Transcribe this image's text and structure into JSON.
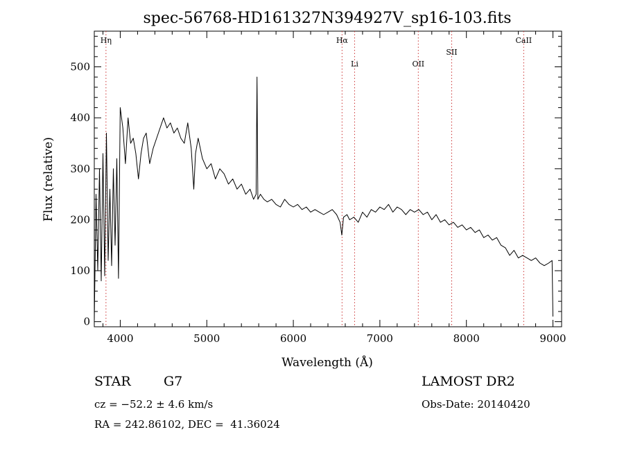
{
  "chart_data": {
    "type": "line",
    "title": "spec-56768-HD161327N394927V_sp16-103.fits",
    "xlabel": "Wavelength (Å)",
    "ylabel": "Flux (relative)",
    "xlim": [
      3700,
      9100
    ],
    "ylim": [
      -10,
      570
    ],
    "xticks": [
      4000,
      5000,
      6000,
      7000,
      8000,
      9000
    ],
    "yticks": [
      0,
      100,
      200,
      300,
      400,
      500
    ],
    "grid": false,
    "series": [
      {
        "color": "#000000",
        "x": [
          3700,
          3720,
          3740,
          3760,
          3780,
          3800,
          3820,
          3840,
          3860,
          3880,
          3900,
          3920,
          3940,
          3960,
          3980,
          4000,
          4030,
          4060,
          4090,
          4120,
          4150,
          4180,
          4210,
          4240,
          4270,
          4300,
          4340,
          4380,
          4420,
          4460,
          4500,
          4540,
          4580,
          4620,
          4660,
          4700,
          4740,
          4780,
          4820,
          4850,
          4870,
          4900,
          4950,
          5000,
          5050,
          5100,
          5150,
          5200,
          5250,
          5300,
          5350,
          5400,
          5450,
          5500,
          5540,
          5570,
          5580,
          5590,
          5620,
          5660,
          5700,
          5750,
          5800,
          5850,
          5900,
          5950,
          6000,
          6050,
          6100,
          6150,
          6200,
          6250,
          6300,
          6350,
          6400,
          6450,
          6500,
          6540,
          6560,
          6580,
          6620,
          6650,
          6700,
          6750,
          6800,
          6850,
          6900,
          6950,
          7000,
          7050,
          7100,
          7150,
          7200,
          7250,
          7300,
          7350,
          7400,
          7450,
          7500,
          7550,
          7600,
          7650,
          7700,
          7750,
          7800,
          7850,
          7900,
          7950,
          8000,
          8050,
          8100,
          8150,
          8200,
          8250,
          8300,
          8350,
          8400,
          8450,
          8500,
          8550,
          8600,
          8650,
          8700,
          8750,
          8800,
          8850,
          8900,
          8950,
          8990,
          9000
        ],
        "values": [
          0,
          250,
          100,
          300,
          80,
          330,
          90,
          370,
          120,
          260,
          110,
          300,
          150,
          320,
          85,
          420,
          380,
          310,
          400,
          350,
          360,
          330,
          280,
          330,
          360,
          370,
          310,
          340,
          360,
          380,
          400,
          380,
          390,
          370,
          380,
          360,
          350,
          390,
          340,
          260,
          330,
          360,
          320,
          300,
          310,
          280,
          300,
          290,
          270,
          280,
          260,
          270,
          250,
          260,
          240,
          250,
          480,
          240,
          250,
          240,
          235,
          240,
          230,
          225,
          240,
          230,
          225,
          230,
          220,
          225,
          215,
          220,
          215,
          210,
          215,
          220,
          210,
          195,
          170,
          205,
          210,
          200,
          205,
          195,
          215,
          205,
          220,
          215,
          225,
          220,
          230,
          215,
          225,
          220,
          210,
          220,
          215,
          220,
          210,
          215,
          200,
          210,
          195,
          200,
          190,
          195,
          185,
          190,
          180,
          185,
          175,
          180,
          165,
          170,
          160,
          165,
          150,
          145,
          130,
          140,
          125,
          130,
          125,
          120,
          125,
          115,
          110,
          115,
          120,
          10
        ]
      }
    ],
    "annotations": [
      {
        "label": "Hη",
        "x": 3835,
        "level": "top"
      },
      {
        "label": "Hα",
        "x": 6563,
        "level": "top"
      },
      {
        "label": "Li",
        "x": 6708,
        "level": "mid"
      },
      {
        "label": "OII",
        "x": 7444,
        "level": "mid"
      },
      {
        "label": "SII",
        "x": 7830,
        "level": "upper"
      },
      {
        "label": "CaII",
        "x": 8662,
        "level": "top"
      }
    ]
  },
  "info": {
    "object_type": "STAR",
    "spectral_class": "G7",
    "survey": "LAMOST DR2",
    "cz": "cz = −52.2 ± 4.6 km/s",
    "obs_date": "Obs-Date: 20140420",
    "coords": "RA = 242.86102, DEC =  41.36024"
  }
}
